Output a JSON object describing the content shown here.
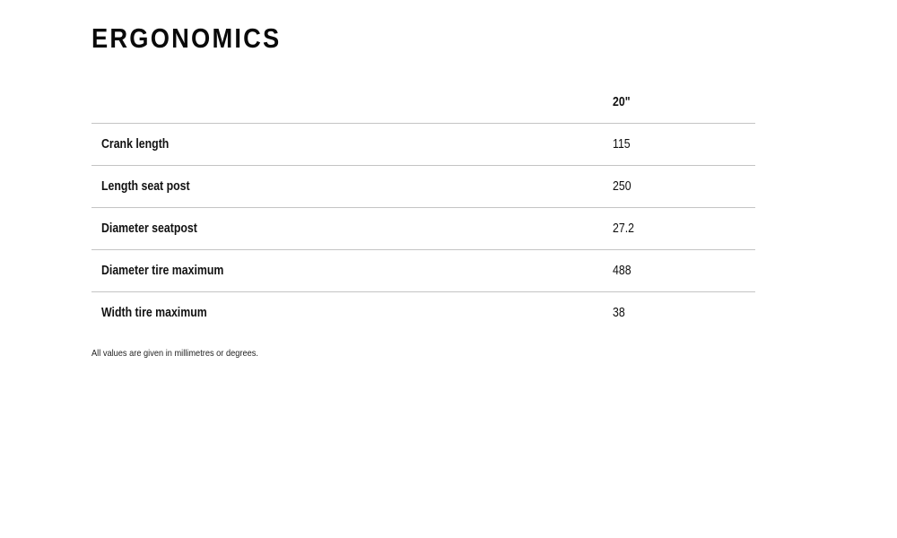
{
  "title": "ERGONOMICS",
  "table": {
    "columns": [
      "",
      "20\""
    ],
    "rows": [
      {
        "label": "Crank length",
        "value": "115"
      },
      {
        "label": "Length seat post",
        "value": "250"
      },
      {
        "label": "Diameter seatpost",
        "value": "27.2"
      },
      {
        "label": "Diameter tire maximum",
        "value": "488"
      },
      {
        "label": "Width tire maximum",
        "value": "38"
      }
    ]
  },
  "footnote": "All values are given in millimetres or degrees."
}
